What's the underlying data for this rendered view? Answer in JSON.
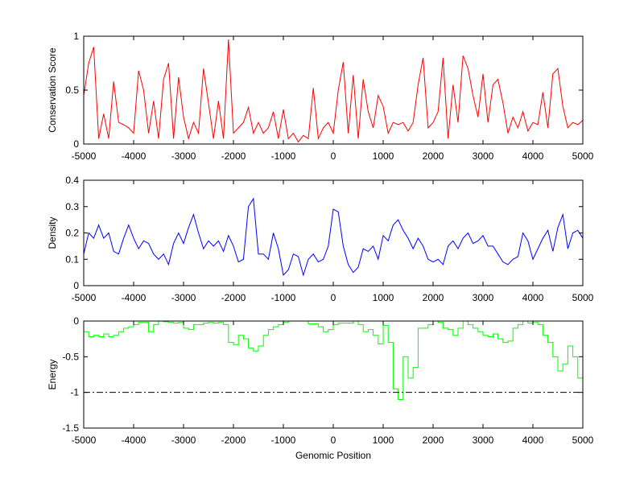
{
  "chart_data": [
    {
      "type": "line",
      "ylabel": "Conservation Score",
      "xlabel": "",
      "xlim": [
        -5000,
        5000
      ],
      "ylim": [
        0,
        1
      ],
      "xticks": [
        -5000,
        -4000,
        -3000,
        -2000,
        -1000,
        0,
        1000,
        2000,
        3000,
        4000,
        5000
      ],
      "yticks": [
        0,
        0.5,
        1
      ],
      "ytick_labels": [
        "0",
        "0.5",
        "1"
      ],
      "color": "#ff0000",
      "step": false,
      "x_start": -5000,
      "x_step": 100,
      "values": [
        0.45,
        0.75,
        0.9,
        0.05,
        0.28,
        0.05,
        0.58,
        0.2,
        0.18,
        0.15,
        0.1,
        0.68,
        0.5,
        0.1,
        0.4,
        0.05,
        0.6,
        0.75,
        0.05,
        0.62,
        0.25,
        0.05,
        0.2,
        0.1,
        0.7,
        0.38,
        0.05,
        0.4,
        0.05,
        0.97,
        0.1,
        0.15,
        0.2,
        0.34,
        0.1,
        0.2,
        0.1,
        0.15,
        0.3,
        0.05,
        0.32,
        0.05,
        0.1,
        0.02,
        0.08,
        0.05,
        0.52,
        0.05,
        0.15,
        0.2,
        0.1,
        0.5,
        0.76,
        0.1,
        0.64,
        0.05,
        0.6,
        0.3,
        0.15,
        0.45,
        0.35,
        0.1,
        0.2,
        0.18,
        0.2,
        0.12,
        0.2,
        0.55,
        0.8,
        0.15,
        0.2,
        0.3,
        0.8,
        0.05,
        0.55,
        0.2,
        0.82,
        0.7,
        0.45,
        0.25,
        0.65,
        0.2,
        0.55,
        0.6,
        0.38,
        0.1,
        0.25,
        0.15,
        0.3,
        0.12,
        0.2,
        0.18,
        0.48,
        0.15,
        0.65,
        0.7,
        0.35,
        0.15,
        0.2,
        0.18,
        0.22
      ]
    },
    {
      "type": "line",
      "ylabel": "Density",
      "xlabel": "",
      "xlim": [
        -5000,
        5000
      ],
      "ylim": [
        0,
        0.4
      ],
      "xticks": [
        -5000,
        -4000,
        -3000,
        -2000,
        -1000,
        0,
        1000,
        2000,
        3000,
        4000,
        5000
      ],
      "yticks": [
        0,
        0.1,
        0.2,
        0.3,
        0.4
      ],
      "ytick_labels": [
        "0",
        "0.1",
        "0.2",
        "0.3",
        "0.4"
      ],
      "color": "#0000ff",
      "step": false,
      "x_start": -5000,
      "x_step": 100,
      "values": [
        0.12,
        0.2,
        0.18,
        0.23,
        0.18,
        0.2,
        0.13,
        0.12,
        0.18,
        0.23,
        0.18,
        0.14,
        0.17,
        0.16,
        0.12,
        0.1,
        0.12,
        0.08,
        0.16,
        0.2,
        0.16,
        0.22,
        0.27,
        0.2,
        0.14,
        0.17,
        0.15,
        0.17,
        0.13,
        0.19,
        0.15,
        0.09,
        0.1,
        0.3,
        0.33,
        0.12,
        0.12,
        0.1,
        0.2,
        0.14,
        0.04,
        0.06,
        0.12,
        0.11,
        0.04,
        0.1,
        0.12,
        0.09,
        0.1,
        0.15,
        0.29,
        0.28,
        0.15,
        0.08,
        0.05,
        0.07,
        0.14,
        0.13,
        0.15,
        0.1,
        0.19,
        0.17,
        0.23,
        0.25,
        0.21,
        0.18,
        0.14,
        0.18,
        0.15,
        0.1,
        0.09,
        0.1,
        0.08,
        0.15,
        0.17,
        0.14,
        0.18,
        0.2,
        0.16,
        0.17,
        0.19,
        0.15,
        0.15,
        0.12,
        0.09,
        0.08,
        0.1,
        0.11,
        0.2,
        0.17,
        0.1,
        0.14,
        0.18,
        0.21,
        0.13,
        0.22,
        0.27,
        0.14,
        0.2,
        0.21,
        0.18
      ]
    },
    {
      "type": "line",
      "ylabel": "Energy",
      "xlabel": "Genomic Position",
      "xlim": [
        -5000,
        5000
      ],
      "ylim": [
        -1.5,
        0
      ],
      "xticks": [
        -5000,
        -4000,
        -3000,
        -2000,
        -1000,
        0,
        1000,
        2000,
        3000,
        4000,
        5000
      ],
      "yticks": [
        -1.5,
        -1,
        -0.5,
        0
      ],
      "ytick_labels": [
        "-1.5",
        "-1",
        "-0.5",
        "0"
      ],
      "color": "#00ff00",
      "step": true,
      "threshold": -1,
      "x_start": -5000,
      "x_step": 100,
      "values": [
        -0.15,
        -0.22,
        -0.2,
        -0.22,
        -0.18,
        -0.22,
        -0.2,
        -0.15,
        -0.1,
        -0.08,
        -0.05,
        -0.02,
        -0.02,
        -0.15,
        -0.05,
        0,
        -0.01,
        -0.02,
        -0.03,
        -0.02,
        -0.1,
        -0.12,
        -0.05,
        -0.05,
        -0.03,
        -0.02,
        -0.03,
        -0.02,
        -0.05,
        -0.3,
        -0.33,
        -0.2,
        -0.25,
        -0.38,
        -0.42,
        -0.35,
        -0.2,
        -0.12,
        -0.08,
        -0.05,
        -0.02,
        0,
        0,
        0,
        0,
        -0.04,
        -0.04,
        -0.08,
        -0.15,
        -0.12,
        -0.05,
        -0.03,
        -0.03,
        -0.03,
        0,
        -0.05,
        -0.15,
        -0.12,
        -0.2,
        -0.32,
        -0.06,
        -0.3,
        -0.95,
        -1.1,
        -0.5,
        -0.8,
        -0.65,
        -0.1,
        -0.1,
        -0.05,
        0,
        -0.02,
        -0.1,
        -0.12,
        -0.2,
        -0.1,
        0,
        -0.05,
        -0.1,
        -0.15,
        -0.2,
        -0.22,
        -0.18,
        -0.25,
        -0.3,
        -0.28,
        -0.1,
        -0.05,
        0,
        -0.03,
        -0.02,
        -0.05,
        -0.2,
        -0.3,
        -0.5,
        -0.7,
        -0.6,
        -0.35,
        -0.5,
        -0.8,
        -0.9
      ]
    }
  ]
}
